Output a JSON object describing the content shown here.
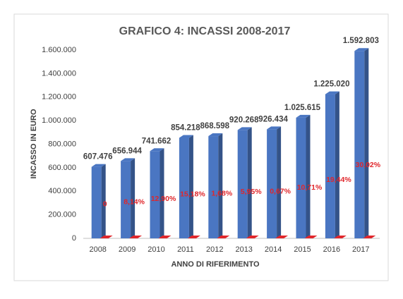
{
  "chart_data": {
    "type": "bar3d",
    "title": "GRAFICO 4: INCASSI 2008-2017",
    "ylabel": "INCASSO IN EURO",
    "xlabel": "ANNO DI RIFERIMENTO",
    "categories": [
      "2008",
      "2009",
      "2010",
      "2011",
      "2012",
      "2013",
      "2014",
      "2015",
      "2016",
      "2017"
    ],
    "series": [
      {
        "color": "#4a76c2",
        "values": [
          607476,
          656944,
          741662,
          854218,
          868598,
          920268,
          926434,
          1025615,
          1225020,
          1592803
        ],
        "value_labels": [
          "607.476",
          "656.944",
          "741.662",
          "854.218",
          "868.598",
          "920.268",
          "926.434",
          "1.025.615",
          "1.225.020",
          "1.592.803"
        ]
      },
      {
        "color": "#e0262b",
        "values": [
          0,
          8.14,
          12.9,
          15.18,
          1.68,
          5.95,
          0.67,
          10.71,
          19.44,
          30.02
        ],
        "value_labels": [
          "0",
          "8,14%",
          "12,90%",
          "15,18%",
          "1,68%",
          "5,95%",
          "0,67%",
          "10,71%",
          "19,44%",
          "30,02%"
        ]
      }
    ],
    "ylim": [
      0,
      1600000
    ],
    "yticks": [
      0,
      {
        "value": 200000,
        "label": "200.000"
      },
      {
        "value": 400000,
        "label": "400.000"
      },
      {
        "value": 600000,
        "label": "600.000"
      },
      {
        "value": 800000,
        "label": "800.000"
      },
      {
        "value": 1000000,
        "label": "1.000.000"
      },
      {
        "value": 1200000,
        "label": "1.200.000"
      },
      {
        "value": 1400000,
        "label": "1.400.000"
      },
      {
        "value": 1600000,
        "label": "1.600.000"
      }
    ],
    "grid": false
  }
}
